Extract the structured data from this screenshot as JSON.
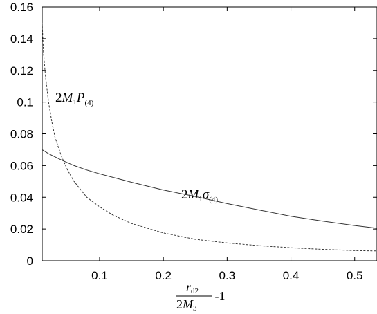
{
  "chart_data": {
    "type": "line",
    "xlim": [
      0.01,
      0.535
    ],
    "ylim": [
      0,
      0.16
    ],
    "xticks": [
      0.1,
      0.2,
      0.3,
      0.4,
      0.5
    ],
    "xtick_labels": [
      "0.1",
      "0.2",
      "0.3",
      "0.4",
      "0.5"
    ],
    "yticks": [
      0,
      0.02,
      0.04,
      0.06,
      0.08,
      0.1,
      0.12,
      0.14,
      0.16
    ],
    "ytick_labels": [
      "0",
      "0.02",
      "0.04",
      "0.06",
      "0.08",
      "0.1",
      "0.12",
      "0.14",
      "0.16"
    ],
    "grid": false,
    "xlabel": {
      "numerator": "r",
      "numerator_sub": "d2",
      "denominator_coef": "2",
      "denominator": "M",
      "denominator_sub": "3",
      "suffix": " -1"
    },
    "series": [
      {
        "label_coef": "2",
        "label_var": "M",
        "label_var_sub": "1",
        "label_sym": "σ",
        "label_sub": "(4)",
        "style": "solid",
        "x": [
          0.01,
          0.02,
          0.04,
          0.06,
          0.08,
          0.1,
          0.15,
          0.2,
          0.25,
          0.3,
          0.35,
          0.4,
          0.45,
          0.5,
          0.535
        ],
        "y": [
          0.07,
          0.0675,
          0.0635,
          0.06,
          0.0572,
          0.0548,
          0.0495,
          0.0446,
          0.0405,
          0.036,
          0.032,
          0.028,
          0.025,
          0.0222,
          0.0205
        ]
      },
      {
        "label_coef": "2",
        "label_var": "M",
        "label_var_sub": "1",
        "label_sym": "P",
        "label_sub": "(4)",
        "style": "dashed",
        "x": [
          0.01,
          0.012,
          0.015,
          0.02,
          0.025,
          0.03,
          0.04,
          0.05,
          0.06,
          0.08,
          0.1,
          0.12,
          0.15,
          0.2,
          0.25,
          0.3,
          0.35,
          0.4,
          0.45,
          0.5,
          0.535
        ],
        "y": [
          0.15,
          0.132,
          0.117,
          0.1,
          0.088,
          0.078,
          0.066,
          0.057,
          0.05,
          0.04,
          0.034,
          0.029,
          0.0235,
          0.0175,
          0.0135,
          0.0112,
          0.0095,
          0.0082,
          0.0072,
          0.0064,
          0.0062
        ]
      }
    ]
  }
}
